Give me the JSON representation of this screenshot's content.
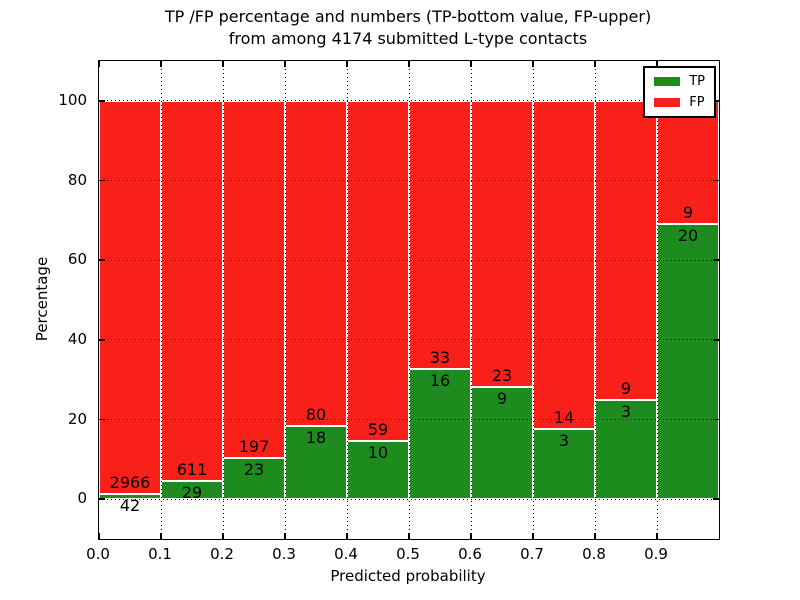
{
  "title": {
    "line1": "TP /FP percentage and numbers (TP-bottom value, FP-upper)",
    "line2": "from among 4174 submitted L-type contacts"
  },
  "axes": {
    "xlabel": "Predicted probability",
    "ylabel": "Percentage"
  },
  "colors": {
    "tp": "#1e8b1e",
    "fp": "#fa201a",
    "grid": "#000000",
    "background": "#ffffff"
  },
  "legend": {
    "items": [
      {
        "label": "TP",
        "color_key": "tp",
        "swatch": "legend-tp-swatch"
      },
      {
        "label": "FP",
        "color_key": "fp",
        "swatch": "legend-fp-swatch"
      }
    ]
  },
  "chart_data": {
    "type": "bar",
    "stacked": true,
    "normalized_to_percent": 100,
    "title": "TP /FP percentage and numbers (TP-bottom value, FP-upper) from among 4174 submitted L-type contacts",
    "xlabel": "Predicted probability",
    "ylabel": "Percentage",
    "xlim": [
      0.0,
      1.0
    ],
    "ylim": [
      -10,
      110
    ],
    "x_tick_labels": [
      "0.0",
      "0.1",
      "0.2",
      "0.3",
      "0.4",
      "0.5",
      "0.6",
      "0.7",
      "0.8",
      "0.9"
    ],
    "y_tick_labels": [
      "0",
      "20",
      "40",
      "60",
      "80",
      "100"
    ],
    "grid": "dotted black, both axes, drawn above bars",
    "legend_position": "upper right",
    "bin_width": 0.1,
    "total_contacts": 4174,
    "bins": [
      {
        "x_range": [
          0.0,
          0.1
        ],
        "tp": 42,
        "fp": 2966,
        "tp_pct": 1.4
      },
      {
        "x_range": [
          0.1,
          0.2
        ],
        "tp": 29,
        "fp": 611,
        "tp_pct": 4.53
      },
      {
        "x_range": [
          0.2,
          0.3
        ],
        "tp": 23,
        "fp": 197,
        "tp_pct": 10.45
      },
      {
        "x_range": [
          0.3,
          0.4
        ],
        "tp": 18,
        "fp": 80,
        "tp_pct": 18.37
      },
      {
        "x_range": [
          0.4,
          0.5
        ],
        "tp": 10,
        "fp": 59,
        "tp_pct": 14.49
      },
      {
        "x_range": [
          0.5,
          0.6
        ],
        "tp": 16,
        "fp": 33,
        "tp_pct": 32.65
      },
      {
        "x_range": [
          0.6,
          0.7
        ],
        "tp": 9,
        "fp": 23,
        "tp_pct": 28.13
      },
      {
        "x_range": [
          0.7,
          0.8
        ],
        "tp": 3,
        "fp": 14,
        "tp_pct": 17.65
      },
      {
        "x_range": [
          0.8,
          0.9
        ],
        "tp": 3,
        "fp": 9,
        "tp_pct": 25.0
      },
      {
        "x_range": [
          0.9,
          1.0
        ],
        "tp": 20,
        "fp": 9,
        "tp_pct": 68.97
      }
    ],
    "series": [
      {
        "name": "TP",
        "color": "#1e8b1e",
        "counts": [
          42,
          29,
          23,
          18,
          10,
          16,
          9,
          3,
          3,
          20
        ]
      },
      {
        "name": "FP",
        "color": "#fa201a",
        "counts": [
          2966,
          611,
          197,
          80,
          59,
          33,
          23,
          14,
          9,
          9
        ]
      }
    ]
  }
}
